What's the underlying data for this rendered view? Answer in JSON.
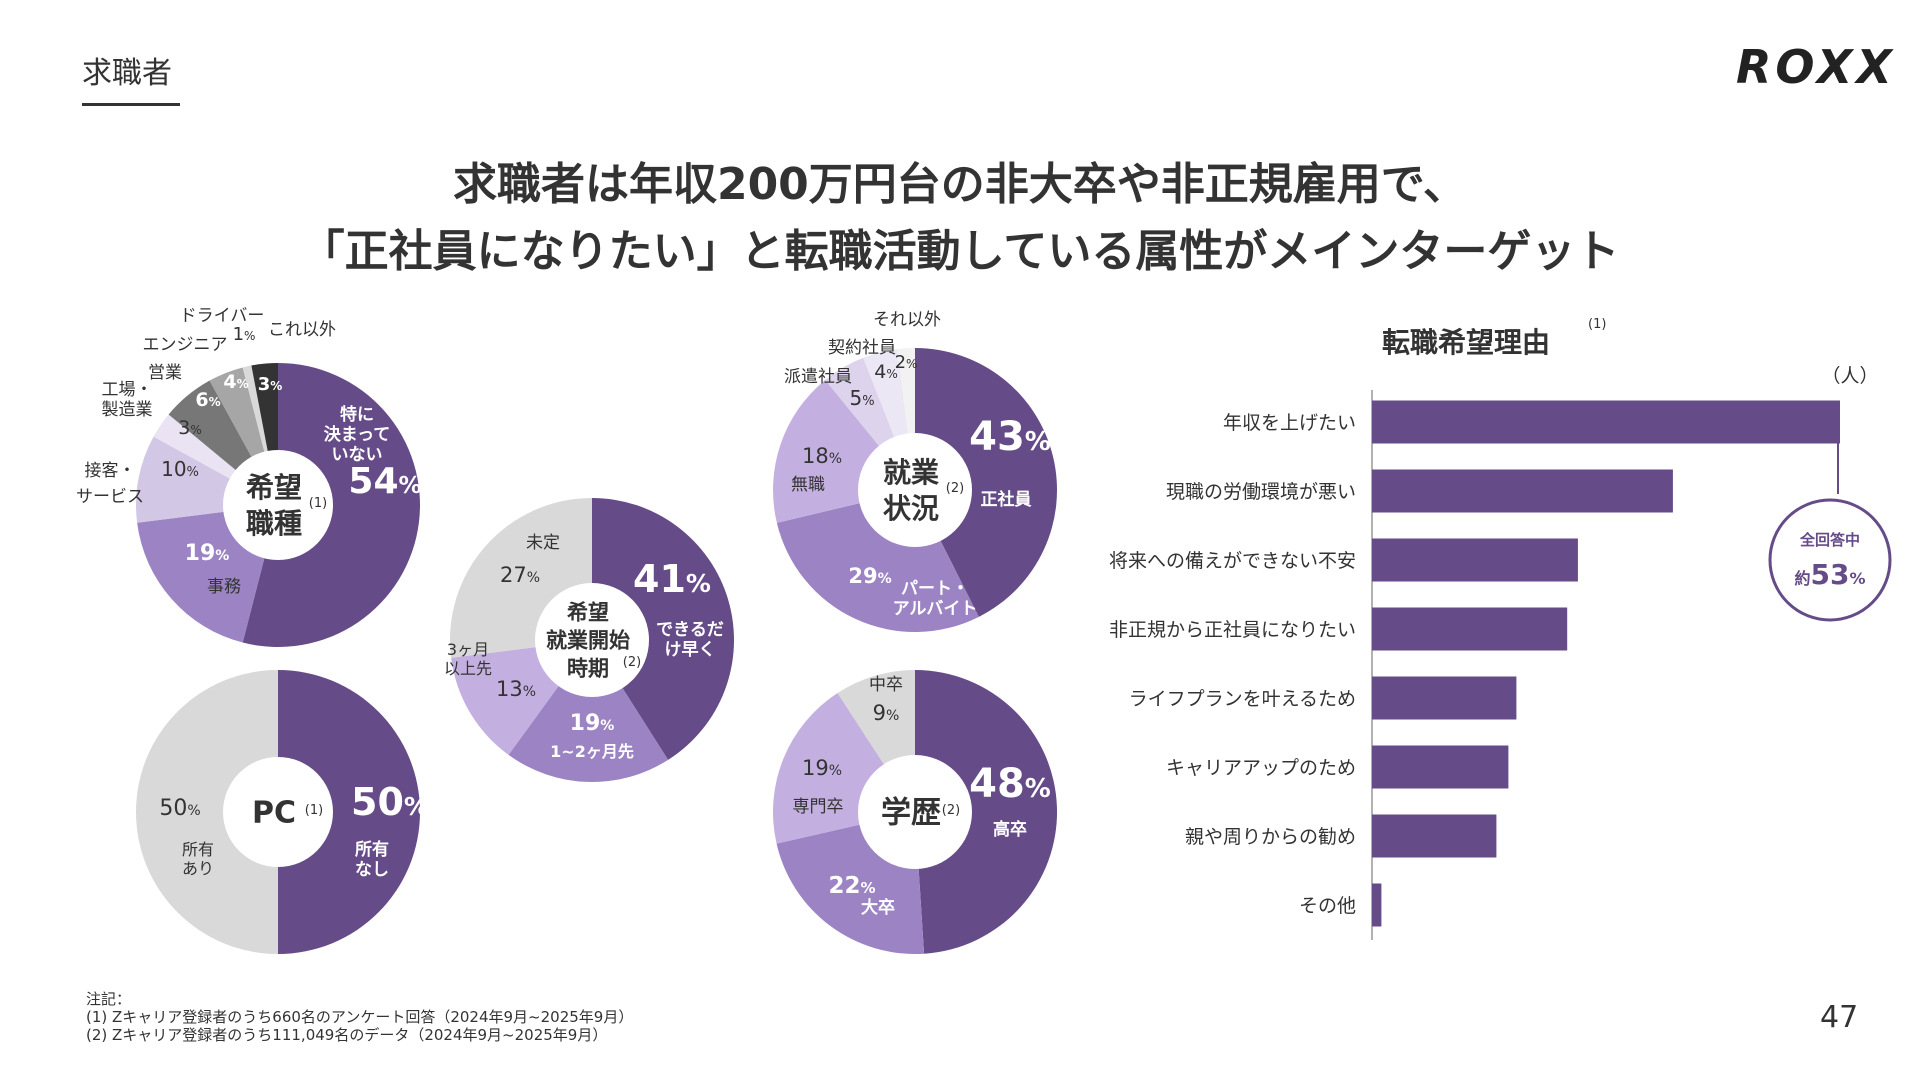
{
  "header": {
    "section_label": "求職者",
    "logo_text": "ROXX",
    "title_line1": "求職者は年収200万円台の非大卒や非正規雇用で、",
    "title_line2": "「正社員になりたい」と転職活動している属性がメインターゲット",
    "page_number": "47"
  },
  "footnotes": {
    "heading": "注記：",
    "note1": "(1) Zキャリア登録者のうち660名のアンケート回答（2024年9月~2025年9月）",
    "note2": "(2) Zキャリア登録者のうち111,049名のデータ（2024年9月~2025年9月）"
  },
  "colors": {
    "dark_purple": "#654b87",
    "mid_purple": "#9c84c4",
    "light_purple": "#c4b0e0",
    "pale_purple": "#ddd3ec",
    "gray_light": "#d9d9d9",
    "gray_dark": "#777777",
    "gray_mid": "#a6a6a6",
    "black": "#333333"
  },
  "chart_data": [
    {
      "type": "pie",
      "center_label": [
        "希望",
        "職種"
      ],
      "center_note": "(1)",
      "slices": [
        {
          "label": "特に決まっていない",
          "value": 54,
          "display": "54%",
          "color": "#654b87"
        },
        {
          "label": "事務",
          "value": 19,
          "display": "19%",
          "color": "#9c84c4"
        },
        {
          "label": "接客・サービス",
          "value": 10,
          "display": "10%",
          "color": "#d3c7e6"
        },
        {
          "label": "工場・製造業",
          "value": 3,
          "display": "3%",
          "color": "#e9e3f3"
        },
        {
          "label": "営業",
          "value": 6,
          "display": "6%",
          "color": "#777777"
        },
        {
          "label": "エンジニア",
          "value": 4,
          "display": "4%",
          "color": "#a6a6a6"
        },
        {
          "label": "ドライバー",
          "value": 1,
          "display": "1%",
          "color": "#d9d9d9"
        },
        {
          "label": "これ以外",
          "value": 3,
          "display": "3%",
          "color": "#333333"
        }
      ]
    },
    {
      "type": "pie",
      "center_label": [
        "PC"
      ],
      "center_note": "(1)",
      "slices": [
        {
          "label": "所有なし",
          "value": 50,
          "display": "50%",
          "color": "#654b87"
        },
        {
          "label": "所有あり",
          "value": 50,
          "display": "50%",
          "color": "#d9d9d9"
        }
      ]
    },
    {
      "type": "pie",
      "center_label": [
        "希望",
        "就業開始",
        "時期"
      ],
      "center_note": "(2)",
      "slices": [
        {
          "label": "できるだけ早く",
          "value": 41,
          "display": "41%",
          "color": "#654b87"
        },
        {
          "label": "1~2ヶ月先",
          "value": 19,
          "display": "19%",
          "color": "#9c84c4"
        },
        {
          "label": "3ヶ月以上先",
          "value": 13,
          "display": "13%",
          "color": "#c4b0e0"
        },
        {
          "label": "未定",
          "value": 27,
          "display": "27%",
          "color": "#d9d9d9"
        }
      ]
    },
    {
      "type": "pie",
      "center_label": [
        "就業",
        "状況"
      ],
      "center_note": "(2)",
      "slices": [
        {
          "label": "正社員",
          "value": 43,
          "display": "43%",
          "color": "#654b87"
        },
        {
          "label": "パート・アルバイト",
          "value": 29,
          "display": "29%",
          "color": "#9c84c4"
        },
        {
          "label": "無職",
          "value": 18,
          "display": "18%",
          "color": "#c4b0e0"
        },
        {
          "label": "派遣社員",
          "value": 5,
          "display": "5%",
          "color": "#ddd3ec"
        },
        {
          "label": "契約社員",
          "value": 4,
          "display": "4%",
          "color": "#ece7f4"
        },
        {
          "label": "それ以外",
          "value": 2,
          "display": "2%",
          "color": "#f2f2f2"
        }
      ]
    },
    {
      "type": "pie",
      "center_label": [
        "学歴"
      ],
      "center_note": "(2)",
      "slices": [
        {
          "label": "高卒",
          "value": 48,
          "display": "48%",
          "color": "#654b87"
        },
        {
          "label": "大卒",
          "value": 22,
          "display": "22%",
          "color": "#9c84c4"
        },
        {
          "label": "専門卒",
          "value": 19,
          "display": "19%",
          "color": "#c4b0e0"
        },
        {
          "label": "中卒",
          "value": 9,
          "display": "9%",
          "color": "#d9d9d9"
        }
      ]
    },
    {
      "type": "bar",
      "orientation": "horizontal",
      "title": "転職希望理由",
      "title_note": "(1)",
      "unit": "（人）",
      "categories": [
        "年収を上げたい",
        "現職の労働環境が悪い",
        "将来への備えができない不安",
        "非正規から正社員になりたい",
        "ライフプランを叶えるため",
        "キャリアアップのため",
        "親や周りからの勧め",
        "その他"
      ],
      "values": [
        350,
        225,
        154,
        146,
        108,
        102,
        93,
        7
      ],
      "xlim": [
        0,
        350
      ],
      "color": "#654b87",
      "callout": {
        "line1": "全回答中",
        "prefix": "約",
        "value": "53",
        "suffix": "%"
      }
    }
  ]
}
